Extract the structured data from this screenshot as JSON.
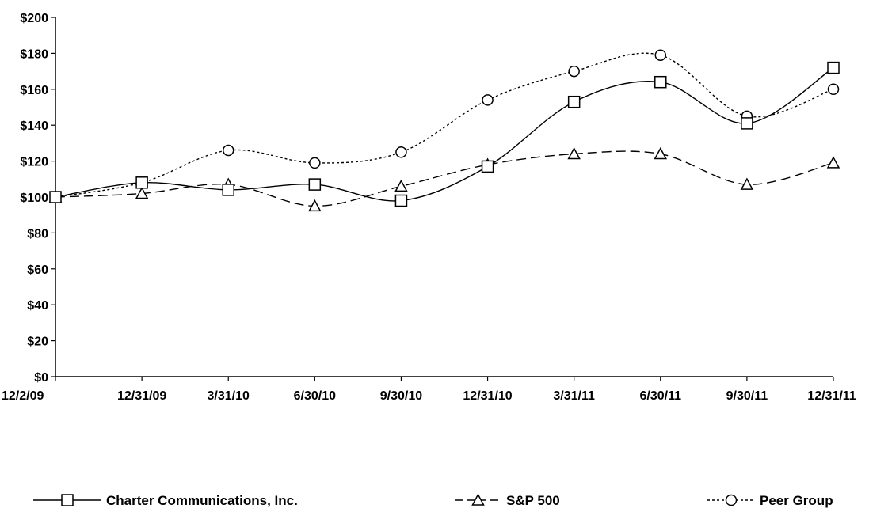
{
  "chart_data": {
    "type": "line",
    "categories": [
      "12/2/09",
      "12/31/09",
      "3/31/10",
      "6/30/10",
      "9/30/10",
      "12/31/10",
      "3/31/11",
      "6/30/11",
      "9/30/11",
      "12/31/11"
    ],
    "series": [
      {
        "name": "Charter Communications, Inc.",
        "marker": "square",
        "line": "solid",
        "values": [
          100,
          108,
          104,
          107,
          98,
          117,
          153,
          164,
          141,
          172
        ]
      },
      {
        "name": "S&P 500",
        "marker": "triangle",
        "line": "dashed",
        "values": [
          100,
          102,
          107,
          95,
          106,
          118,
          124,
          124,
          107,
          119
        ]
      },
      {
        "name": "Peer Group",
        "marker": "circle",
        "line": "dotted",
        "values": [
          100,
          108,
          126,
          119,
          125,
          154,
          170,
          179,
          145,
          160
        ]
      }
    ],
    "yticks": [
      "$0",
      "$20",
      "$40",
      "$60",
      "$80",
      "$100",
      "$120",
      "$140",
      "$160",
      "$180",
      "$200"
    ],
    "ylim": [
      0,
      200
    ],
    "grid": false,
    "legend": "bottom",
    "colors": {
      "line": "#000000",
      "background": "#ffffff"
    }
  }
}
